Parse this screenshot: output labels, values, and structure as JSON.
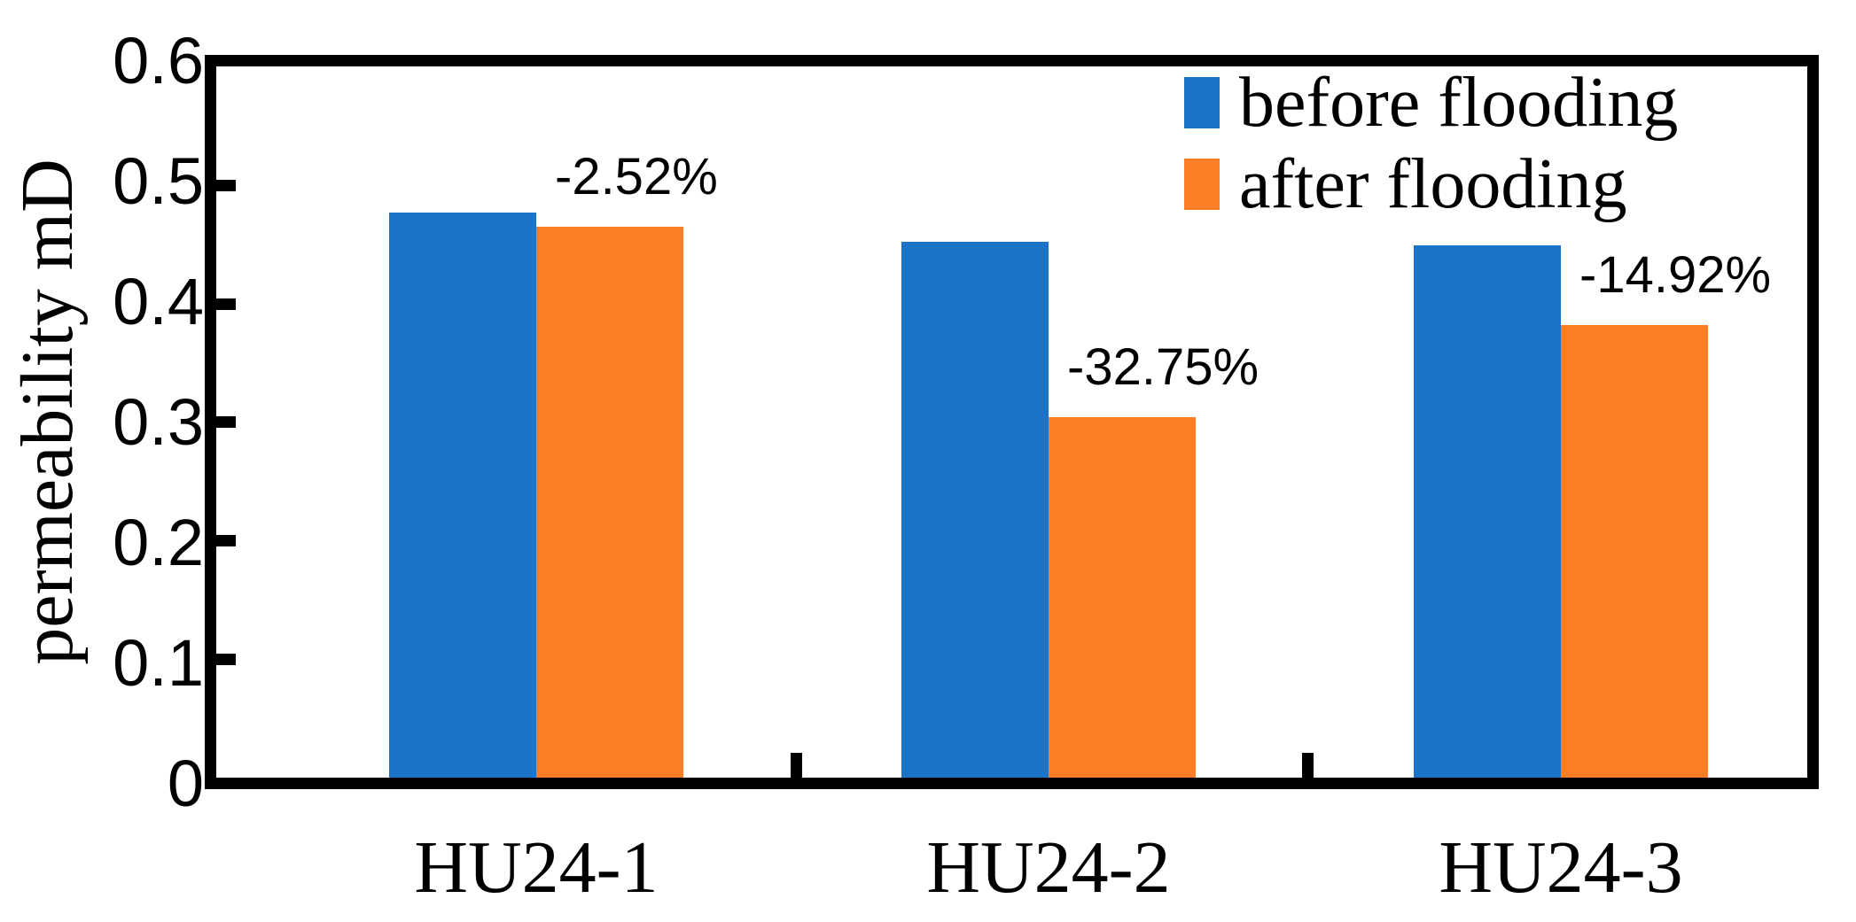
{
  "chart_data": {
    "type": "bar",
    "title": "",
    "xlabel": "",
    "ylabel": "permeability mD",
    "categories": [
      "HU24-1",
      "HU24-2",
      "HU24-3"
    ],
    "series": [
      {
        "name": "before flooding",
        "color": "#1B74C8",
        "values": [
          0.477,
          0.452,
          0.449
        ]
      },
      {
        "name": "after flooding",
        "color": "#FB7D26",
        "values": [
          0.465,
          0.304,
          0.382
        ]
      }
    ],
    "annotations": [
      {
        "text": "-2.52%",
        "category_index": 0
      },
      {
        "text": "-32.75%",
        "category_index": 1
      },
      {
        "text": "-14.92%",
        "category_index": 2
      }
    ],
    "ylim": [
      0,
      0.6
    ],
    "yticks": [
      0,
      0.1,
      0.2,
      0.3,
      0.4,
      0.5,
      0.6
    ],
    "ytick_labels": [
      "0",
      "0.1",
      "0.2",
      "0.3",
      "0.4",
      "0.5",
      "0.6"
    ],
    "legend_position": "top-right",
    "grid": false,
    "frame_color": "#000000",
    "text_color": "#000000",
    "background_color": "#ffffff"
  }
}
